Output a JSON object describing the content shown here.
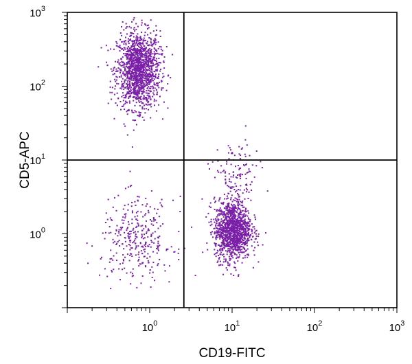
{
  "chart_data": {
    "type": "scatter",
    "title": "",
    "xlabel": "CD19-FITC",
    "ylabel": "CD5-APC",
    "xscale": "log",
    "yscale": "log",
    "xlim": [
      0.1,
      1000
    ],
    "ylim": [
      0.1,
      1000
    ],
    "x_ticks": [
      {
        "value": 1,
        "base": "10",
        "exp": "0"
      },
      {
        "value": 10,
        "base": "10",
        "exp": "1"
      },
      {
        "value": 100,
        "base": "10",
        "exp": "2"
      },
      {
        "value": 1000,
        "base": "10",
        "exp": "3"
      }
    ],
    "y_ticks": [
      {
        "value": 1,
        "base": "10",
        "exp": "0"
      },
      {
        "value": 10,
        "base": "10",
        "exp": "1"
      },
      {
        "value": 100,
        "base": "10",
        "exp": "2"
      },
      {
        "value": 1000,
        "base": "10",
        "exp": "3"
      }
    ],
    "grid": false,
    "quadrant_gates": {
      "x": 2.6,
      "y": 10
    },
    "point_color": "#7a1fa8",
    "populations": [
      {
        "center_x": 0.72,
        "center_y": 170,
        "spread_x_log10": 0.13,
        "spread_y_log10": 0.26,
        "count": 1500
      },
      {
        "center_x": 10,
        "center_y": 1.15,
        "spread_x_log10": 0.11,
        "spread_y_log10": 0.2,
        "count": 1300
      },
      {
        "center_x": 0.7,
        "center_y": 0.85,
        "spread_x_log10": 0.22,
        "spread_y_log10": 0.28,
        "count": 330
      },
      {
        "center_x": 11,
        "center_y": 6,
        "spread_x_log10": 0.14,
        "spread_y_log10": 0.25,
        "count": 130
      }
    ]
  }
}
